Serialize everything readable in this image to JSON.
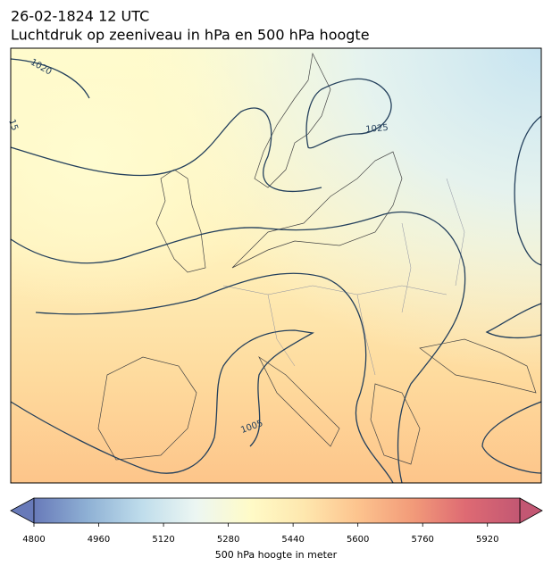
{
  "header": {
    "date": "26-02-1824 12 UTC",
    "title": "Luchtdruk op zeeniveau in hPa en 500 hPa hoogte"
  },
  "map": {
    "contour_labels": [
      "1020",
      "15",
      "1025",
      "1005"
    ]
  },
  "colorbar": {
    "vlim": [
      4800,
      6000
    ],
    "ticks": [
      4800,
      4960,
      5120,
      5280,
      5440,
      5600,
      5760,
      5920
    ],
    "colors": [
      "#4e63ad",
      "#7ba3cd",
      "#b4d7e8",
      "#e9f5f0",
      "#fffabe",
      "#fee3a0",
      "#fcb97a",
      "#f08a62",
      "#d8505a",
      "#b83a5a"
    ],
    "label": "500 hPa hoogte in meter"
  }
}
